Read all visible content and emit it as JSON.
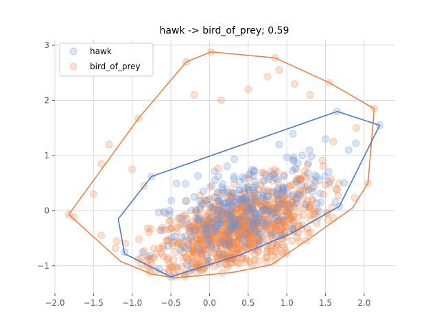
{
  "chart_data": {
    "type": "scatter",
    "title": "hawk -> bird_of_prey; 0.59",
    "xlabel": "",
    "ylabel": "",
    "xlim": [
      -2.0,
      2.4
    ],
    "ylim": [
      -1.5,
      3.1
    ],
    "xticks": [
      -2.0,
      -1.5,
      -1.0,
      -0.5,
      0.0,
      0.5,
      1.0,
      1.5,
      2.0
    ],
    "xtick_labels": [
      "−2.0",
      "−1.5",
      "−1.0",
      "−0.5",
      "0.0",
      "0.5",
      "1.0",
      "1.5",
      "2.0"
    ],
    "yticks": [
      -1,
      0,
      1,
      2,
      3
    ],
    "ytick_labels": [
      "−1",
      "0",
      "1",
      "2",
      "3"
    ],
    "grid": true,
    "legend_placement": "top-left",
    "series": [
      {
        "name": "bird_of_prey",
        "color": "#f0884a",
        "point_alpha": 0.25,
        "hull_color": "#e8834a",
        "cluster": {
          "center": [
            0.35,
            -0.35
          ],
          "spread": [
            0.55,
            0.45
          ],
          "count": 900
        },
        "hull": [
          [
            -1.82,
            -0.07
          ],
          [
            -0.92,
            1.67
          ],
          [
            -0.3,
            2.7
          ],
          [
            0.02,
            2.88
          ],
          [
            0.85,
            2.77
          ],
          [
            1.55,
            2.32
          ],
          [
            2.13,
            1.85
          ],
          [
            2.05,
            0.5
          ],
          [
            1.85,
            0.05
          ],
          [
            1.35,
            -0.45
          ],
          [
            0.8,
            -0.98
          ],
          [
            0.3,
            -1.12
          ],
          [
            -0.45,
            -1.22
          ],
          [
            -0.75,
            -1.15
          ],
          [
            -1.15,
            -0.92
          ]
        ],
        "outliers": [
          [
            -1.82,
            -0.07
          ],
          [
            -1.75,
            -0.12
          ],
          [
            -1.5,
            0.3
          ],
          [
            -1.4,
            0.85
          ],
          [
            -1.3,
            1.2
          ],
          [
            -0.92,
            1.67
          ],
          [
            -0.3,
            2.7
          ],
          [
            0.02,
            2.88
          ],
          [
            0.85,
            2.77
          ],
          [
            0.9,
            2.55
          ],
          [
            1.1,
            2.3
          ],
          [
            1.3,
            2.1
          ],
          [
            1.55,
            2.32
          ],
          [
            2.13,
            1.85
          ],
          [
            1.9,
            1.5
          ],
          [
            -1.2,
            -0.55
          ],
          [
            -1.4,
            -0.45
          ],
          [
            -0.2,
            2.1
          ],
          [
            0.15,
            2.0
          ],
          [
            0.5,
            2.2
          ],
          [
            0.75,
            2.43
          ],
          [
            1.6,
            1.25
          ],
          [
            2.05,
            0.5
          ],
          [
            -1.0,
            0.75
          ],
          [
            -0.85,
            0.45
          ]
        ]
      },
      {
        "name": "hawk",
        "color": "#6d95d6",
        "point_alpha": 0.25,
        "hull_color": "#4a78cf",
        "cluster": {
          "center": [
            0.45,
            0.0
          ],
          "spread": [
            0.55,
            0.5
          ],
          "count": 260
        },
        "hull": [
          [
            -1.18,
            -0.15
          ],
          [
            -0.75,
            0.62
          ],
          [
            1.65,
            1.8
          ],
          [
            2.2,
            1.55
          ],
          [
            1.68,
            0.08
          ],
          [
            1.05,
            -0.42
          ],
          [
            0.4,
            -0.8
          ],
          [
            -0.5,
            -1.2
          ],
          [
            -1.1,
            -0.78
          ]
        ],
        "outliers": [
          [
            1.65,
            1.8
          ],
          [
            2.2,
            1.55
          ],
          [
            1.5,
            1.3
          ],
          [
            1.2,
            1.0
          ],
          [
            -0.75,
            0.62
          ],
          [
            -1.1,
            -0.75
          ],
          [
            -0.5,
            -1.2
          ],
          [
            1.68,
            0.08
          ],
          [
            1.8,
            1.1
          ],
          [
            0.9,
            1.2
          ]
        ]
      }
    ]
  }
}
